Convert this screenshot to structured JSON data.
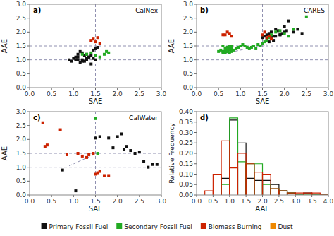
{
  "chart_data": [
    {
      "type": "scatter",
      "title": "CalNex",
      "annotations": [
        "a)"
      ],
      "x_label": "SAE",
      "y_label": "AAE",
      "xlim": [
        0.0,
        3.0
      ],
      "ylim": [
        0.0,
        3.0
      ],
      "xticks": [
        {
          "value": 0.0,
          "label": "0.0"
        },
        0.5,
        {
          "value": 1.0,
          "label": "1.0"
        },
        1.5,
        {
          "value": 2.0,
          "label": "2.0"
        },
        2.5,
        {
          "value": 3.0,
          "label": "3.0"
        }
      ],
      "yticks": [
        {
          "value": 0.0,
          "label": "0.0"
        },
        0.5,
        {
          "value": 1.0,
          "label": "1.0"
        },
        1.5,
        {
          "value": 2.0,
          "label": "2.0"
        },
        2.5,
        {
          "value": 3.0,
          "label": "3.0"
        }
      ],
      "legend": "bottom",
      "series": [
        {
          "type": "vline",
          "line_style": "dashed",
          "color": "#9090b0",
          "values": [
            1.5
          ]
        },
        {
          "type": "hline",
          "line_style": "dashed",
          "color": "#9090b0",
          "values": [
            1.0,
            1.5
          ]
        },
        {
          "name": "Primary Fossil Fuel",
          "type": "scatter",
          "marker": "square",
          "color": "#111111",
          "x": [
            0.9,
            0.95,
            1.0,
            1.05,
            1.1,
            1.15,
            1.2,
            1.25,
            1.3,
            1.35,
            1.4,
            1.1,
            1.15,
            1.2,
            1.25,
            1.3,
            1.35,
            1.4,
            1.45,
            1.5,
            1.45,
            1.5,
            1.55,
            1.05,
            1.1,
            1.2,
            1.3
          ],
          "values": [
            1.0,
            0.95,
            1.05,
            1.1,
            1.0,
            0.9,
            1.0,
            0.95,
            1.05,
            1.1,
            0.85,
            1.2,
            1.3,
            1.25,
            1.15,
            1.2,
            1.1,
            1.15,
            1.05,
            1.0,
            1.35,
            1.4,
            1.45,
            1.0,
            1.1,
            0.95,
            1.0
          ]
        },
        {
          "name": "Secondary Fossil Fuel",
          "type": "scatter",
          "marker": "square",
          "color": "#22aa22",
          "x": [
            1.2,
            1.3,
            1.4,
            1.5,
            1.6,
            1.7,
            1.75,
            1.8
          ],
          "values": [
            1.2,
            1.2,
            1.25,
            1.15,
            1.1,
            1.2,
            1.3,
            1.25
          ]
        },
        {
          "name": "Biomass Burning",
          "type": "scatter",
          "marker": "square",
          "color": "#cc2200",
          "x": [
            1.4,
            1.45,
            1.5,
            1.55,
            1.6
          ],
          "values": [
            1.7,
            1.75,
            1.65,
            1.8,
            1.6
          ]
        },
        {
          "name": "Dust",
          "type": "scatter",
          "marker": "square",
          "color": "#ee8800",
          "x": [],
          "values": []
        }
      ]
    },
    {
      "type": "scatter",
      "title": "CARES",
      "annotations": [
        "b)"
      ],
      "x_label": "SAE",
      "y_label": "AAE",
      "xlim": [
        0.0,
        3.0
      ],
      "ylim": [
        0.0,
        3.0
      ],
      "xticks": [
        {
          "value": 0.0,
          "label": "0.0"
        },
        0.5,
        {
          "value": 1.0,
          "label": "1.0"
        },
        1.5,
        {
          "value": 2.0,
          "label": "2.0"
        },
        2.5,
        {
          "value": 3.0,
          "label": "3.0"
        }
      ],
      "yticks": [
        {
          "value": 0.0,
          "label": "0.0"
        },
        0.5,
        {
          "value": 1.0,
          "label": "1.0"
        },
        1.5,
        {
          "value": 2.0,
          "label": "2.0"
        },
        2.5,
        {
          "value": 3.0,
          "label": "3.0"
        }
      ],
      "series": [
        {
          "type": "vline",
          "line_style": "dashed",
          "color": "#9090b0",
          "values": [
            1.5
          ]
        },
        {
          "type": "hline",
          "line_style": "dashed",
          "color": "#9090b0",
          "values": [
            1.0,
            1.5
          ]
        },
        {
          "type": "scatter",
          "marker": "square",
          "color": "#111111",
          "x": [
            1.5,
            1.55,
            1.6,
            1.65,
            1.7,
            1.75,
            1.8,
            1.85,
            1.9,
            1.95,
            2.0,
            2.05,
            2.1,
            1.6,
            1.7,
            1.8,
            1.9,
            2.0,
            1.75,
            1.65,
            2.2,
            2.3,
            2.4
          ],
          "values": [
            1.8,
            1.85,
            1.9,
            1.95,
            2.0,
            1.85,
            2.1,
            2.05,
            1.9,
            1.95,
            2.0,
            2.05,
            2.4,
            1.75,
            1.8,
            1.85,
            1.9,
            2.2,
            1.7,
            1.65,
            2.0,
            2.1,
            1.95
          ]
        },
        {
          "type": "scatter",
          "marker": "square",
          "color": "#22aa22",
          "x": [
            0.6,
            0.65,
            0.7,
            0.75,
            0.8,
            0.6,
            0.7,
            0.75,
            0.8,
            0.65,
            0.7,
            0.75,
            0.8,
            0.85,
            0.9,
            0.95,
            1.0,
            1.05,
            1.1,
            1.15,
            1.2,
            1.3,
            1.4,
            1.5,
            1.55,
            1.6,
            1.65,
            1.7,
            1.8,
            1.9,
            2.0,
            2.1,
            2.2,
            2.5,
            0.5,
            0.55,
            0.6,
            0.65,
            0.7,
            0.75,
            0.8,
            1.25,
            1.35,
            1.45
          ],
          "values": [
            1.3,
            1.25,
            1.3,
            1.35,
            1.4,
            1.5,
            1.45,
            1.5,
            1.35,
            1.4,
            1.3,
            1.25,
            1.3,
            1.35,
            1.4,
            1.45,
            1.5,
            1.55,
            1.5,
            1.45,
            1.4,
            1.5,
            1.55,
            1.6,
            1.65,
            1.7,
            1.8,
            1.9,
            2.0,
            2.05,
            1.95,
            1.85,
            2.1,
            2.55,
            1.3,
            1.35,
            1.25,
            1.3,
            1.35,
            1.4,
            1.5,
            1.45,
            1.4,
            1.5
          ]
        },
        {
          "type": "scatter",
          "marker": "square",
          "color": "#cc2200",
          "x": [
            0.6,
            0.7,
            0.75,
            0.8,
            1.5,
            1.55,
            1.6,
            1.65,
            1.7,
            0.65
          ],
          "values": [
            1.9,
            2.0,
            1.95,
            1.85,
            1.9,
            2.0,
            1.8,
            1.85,
            1.75,
            1.9
          ]
        },
        {
          "type": "line",
          "line_style": "dashed",
          "color": "#9090b0",
          "x": [
            0.55,
            1.6
          ],
          "values": [
            1.2,
            1.55
          ]
        }
      ]
    },
    {
      "type": "scatter",
      "title": "CalWater",
      "annotations": [
        "c)"
      ],
      "x_label": "SAE",
      "y_label": "AAE",
      "xlim": [
        0.0,
        3.0
      ],
      "ylim": [
        0.0,
        3.0
      ],
      "xticks": [
        {
          "value": 0.0,
          "label": "0.0"
        },
        0.5,
        {
          "value": 1.0,
          "label": "1.0"
        },
        1.5,
        {
          "value": 2.0,
          "label": "2.0"
        },
        2.5,
        {
          "value": 3.0,
          "label": "3.0"
        }
      ],
      "yticks": [
        {
          "value": 0.0,
          "label": "0.0"
        },
        0.5,
        {
          "value": 1.0,
          "label": "1.0"
        },
        1.5,
        {
          "value": 2.0,
          "label": "2.0"
        },
        2.5,
        {
          "value": 3.0,
          "label": "3.0"
        }
      ],
      "series": [
        {
          "type": "vline",
          "line_style": "dashed",
          "color": "#9090b0",
          "values": [
            1.5
          ]
        },
        {
          "type": "hline",
          "line_style": "dashed",
          "color": "#9090b0",
          "values": [
            1.0,
            1.5
          ]
        },
        {
          "type": "scatter",
          "marker": "square",
          "color": "#111111",
          "x": [
            0.75,
            1.05,
            1.5,
            1.6,
            1.8,
            1.9,
            2.0,
            2.1,
            2.15,
            2.2,
            2.3,
            2.4,
            2.5,
            2.6,
            2.7,
            2.8,
            2.9
          ],
          "values": [
            0.9,
            0.15,
            2.05,
            2.1,
            2.05,
            1.7,
            2.1,
            2.2,
            1.65,
            1.75,
            1.6,
            1.5,
            1.55,
            1.2,
            1.0,
            1.1,
            1.1
          ]
        },
        {
          "type": "scatter",
          "marker": "square",
          "color": "#22aa22",
          "x": [
            1.5,
            1.55
          ],
          "values": [
            2.75,
            1.5
          ]
        },
        {
          "type": "scatter",
          "marker": "square",
          "color": "#cc2200",
          "x": [
            0.3,
            0.35,
            0.4,
            0.7,
            0.85,
            1.1,
            1.2,
            1.3,
            1.35,
            1.45,
            1.5,
            1.55,
            1.6,
            1.7,
            1.8
          ],
          "values": [
            2.6,
            1.75,
            1.8,
            2.35,
            1.45,
            1.5,
            1.4,
            1.35,
            1.45,
            1.5,
            0.75,
            0.8,
            0.85,
            0.7,
            0.7
          ]
        },
        {
          "type": "line",
          "line_style": "dashed",
          "color": "#9090b0",
          "x": [
            0.9,
            1.6
          ],
          "values": [
            1.05,
            1.55
          ]
        }
      ]
    },
    {
      "type": "histogram",
      "annotations": [
        "d)"
      ],
      "x_label": "AAE",
      "y_label": "Relative Frequency",
      "xlim": [
        0.0,
        4.0
      ],
      "ylim": [
        0.0,
        0.4
      ],
      "xticks": [
        {
          "value": 0.0,
          "label": "0.0"
        },
        0.5,
        {
          "value": 1.0,
          "label": "1.0"
        },
        1.5,
        {
          "value": 2.0,
          "label": "2.0"
        },
        2.5,
        {
          "value": 3.0,
          "label": "3.0"
        },
        3.5,
        {
          "value": 4.0,
          "label": "4.0"
        }
      ],
      "yticks": [
        {
          "value": 0.0,
          "label": "0.00"
        },
        0.05,
        {
          "value": 0.1,
          "label": "0.10"
        },
        0.15,
        {
          "value": 0.2,
          "label": "0.20"
        },
        0.25,
        {
          "value": 0.3,
          "label": "0.30"
        },
        0.35,
        {
          "value": 0.4,
          "label": "0.40"
        }
      ],
      "series": [
        {
          "color": "#111111",
          "bins": [
            0.75,
            1.0,
            1.25,
            1.5,
            1.75,
            2.0,
            2.25,
            2.5,
            2.75,
            3.0,
            3.25,
            3.5,
            3.75,
            4.0
          ],
          "values": [
            0.08,
            0.36,
            0.25,
            0.08,
            0.07,
            0.07,
            0.05,
            0.02,
            0.01,
            0.0,
            0.01,
            0.0,
            0.0
          ]
        },
        {
          "color": "#22aa22",
          "bins": [
            0.75,
            1.0,
            1.25,
            1.5,
            1.75,
            2.0,
            2.25,
            2.5,
            2.75,
            3.0,
            3.25,
            3.5,
            3.75,
            4.0
          ],
          "values": [
            0.05,
            0.37,
            0.16,
            0.15,
            0.15,
            0.05,
            0.03,
            0.02,
            0.01,
            0.0,
            0.0,
            0.0,
            0.0
          ]
        },
        {
          "color": "#cc2200",
          "bins": [
            0.25,
            0.5,
            0.75,
            1.0,
            1.25,
            1.5,
            1.75,
            2.0,
            2.25,
            2.5,
            2.75,
            3.0,
            3.25,
            3.5,
            3.75,
            4.0
          ],
          "values": [
            0.02,
            0.1,
            0.26,
            0.13,
            0.2,
            0.15,
            0.11,
            0.1,
            0.03,
            0.02,
            0.01,
            0.01,
            0.01,
            0.01,
            0.0
          ]
        }
      ]
    }
  ]
}
